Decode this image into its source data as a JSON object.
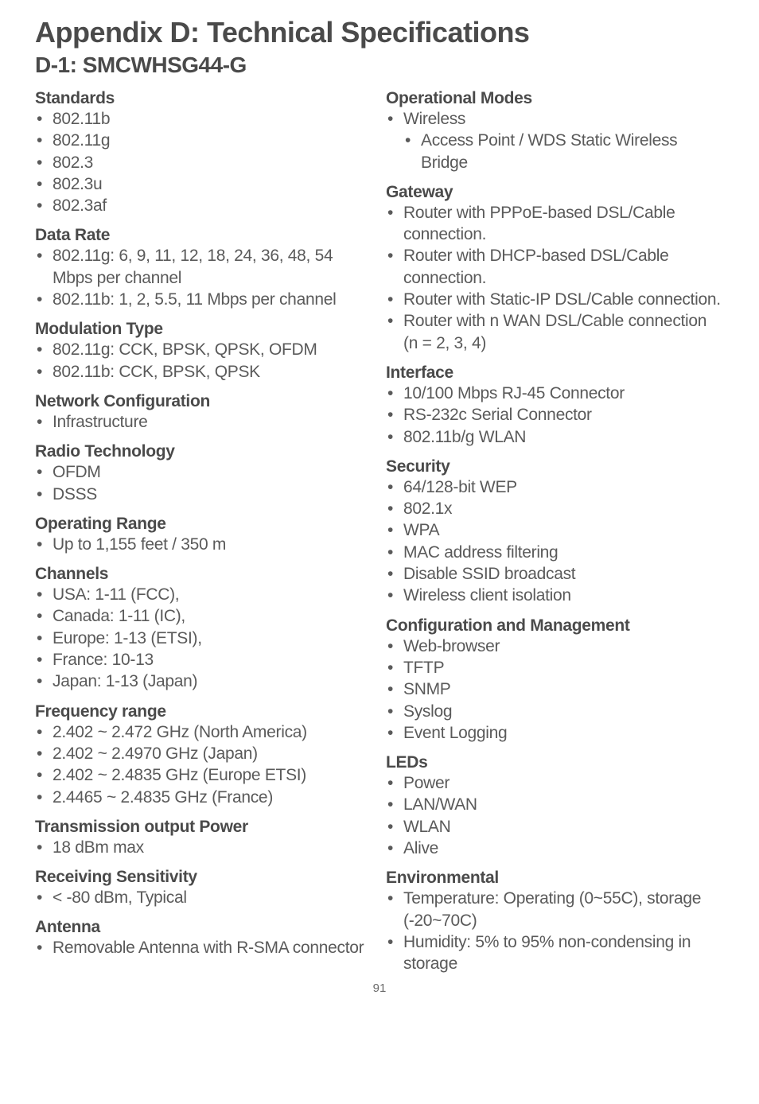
{
  "title": "Appendix D: Technical Specifications",
  "subtitle": "D-1: SMCWHSG44-G",
  "page_number": "91",
  "left": [
    {
      "heading": "Standards",
      "items": [
        "802.11b",
        "802.11g",
        "802.3",
        "802.3u",
        "802.3af"
      ]
    },
    {
      "heading": "Data Rate",
      "items": [
        "802.11g: 6, 9, 11, 12, 18, 24, 36, 48, 54 Mbps per channel",
        "802.11b: 1, 2, 5.5, 11 Mbps per channel"
      ]
    },
    {
      "heading": "Modulation Type",
      "items": [
        "802.11g: CCK, BPSK, QPSK, OFDM",
        "802.11b: CCK, BPSK, QPSK"
      ]
    },
    {
      "heading": "Network Configuration",
      "items": [
        "Infrastructure"
      ]
    },
    {
      "heading": "Radio Technology",
      "items": [
        "OFDM",
        "DSSS"
      ]
    },
    {
      "heading": "Operating Range",
      "items": [
        "Up to 1,155 feet / 350 m"
      ]
    },
    {
      "heading": "Channels",
      "items": [
        "USA: 1-11 (FCC),",
        "Canada: 1-11 (IC),",
        "Europe: 1-13 (ETSI),",
        "France: 10-13",
        "Japan: 1-13 (Japan)"
      ]
    },
    {
      "heading": "Frequency range",
      "items": [
        "2.402 ~ 2.472 GHz (North America)",
        "2.402 ~ 2.4970 GHz (Japan)",
        "2.402 ~ 2.4835 GHz (Europe ETSI)",
        "2.4465 ~ 2.4835 GHz (France)"
      ]
    },
    {
      "heading": "Transmission output Power",
      "items": [
        "18 dBm max"
      ]
    },
    {
      "heading": "Receiving Sensitivity",
      "items": [
        "< -80 dBm, Typical"
      ]
    },
    {
      "heading": "Antenna",
      "items": [
        "Removable Antenna with R-SMA connector"
      ]
    }
  ],
  "right": [
    {
      "heading": "Operational Modes",
      "items": [
        "Wireless"
      ],
      "subitems": [
        "Access Point / WDS Static Wireless Bridge"
      ]
    },
    {
      "heading": "Gateway",
      "items": [
        "Router with PPPoE-based DSL/Cable connection.",
        "Router with DHCP-based DSL/Cable connection.",
        "Router with Static-IP DSL/Cable connection.",
        "Router with n WAN DSL/Cable connection (n = 2, 3, 4)"
      ]
    },
    {
      "heading": "Interface",
      "items": [
        "10/100 Mbps RJ-45 Connector",
        "RS-232c Serial Connector",
        "802.11b/g WLAN"
      ]
    },
    {
      "heading": "Security",
      "items": [
        "64/128-bit WEP",
        "802.1x",
        "WPA",
        "MAC address filtering",
        "Disable SSID broadcast",
        "Wireless client isolation"
      ]
    },
    {
      "heading": "Configuration and Management",
      "items": [
        "Web-browser",
        "TFTP",
        "SNMP",
        "Syslog",
        "Event Logging"
      ]
    },
    {
      "heading": "LEDs",
      "items": [
        "Power",
        "LAN/WAN",
        "WLAN",
        "Alive"
      ]
    },
    {
      "heading": "Environmental",
      "items": [
        "Temperature: Operating (0~55C), storage (-20~70C)",
        "Humidity: 5% to 95% non-condensing in storage"
      ]
    }
  ]
}
